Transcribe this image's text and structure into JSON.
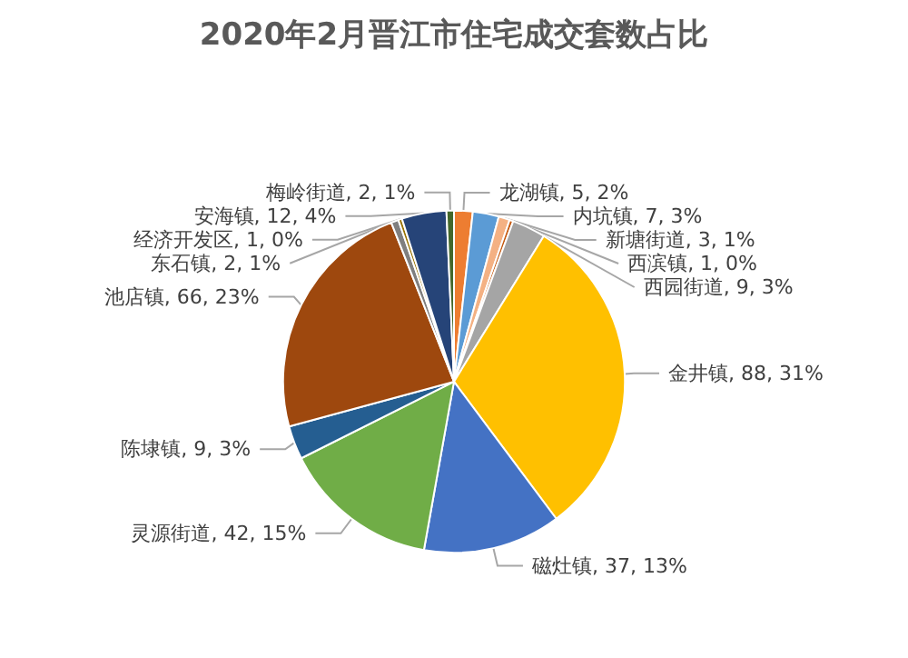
{
  "chart_data": {
    "type": "pie",
    "title": "2020年2月晋江市住宅成交套数占比",
    "categories": [
      "龙湖镇",
      "内坑镇",
      "新塘街道",
      "西滨镇",
      "西园街道",
      "金井镇",
      "磁灶镇",
      "灵源街道",
      "陈埭镇",
      "池店镇",
      "东石镇",
      "经济开发区",
      "安海镇",
      "梅岭街道"
    ],
    "values": [
      5,
      7,
      3,
      1,
      9,
      88,
      37,
      42,
      9,
      66,
      2,
      1,
      12,
      2
    ],
    "value_labels": [
      "5, 2%",
      "7, 3%",
      "3, 1%",
      "1, 0%",
      "9, 3%",
      "88, 31%",
      "37, 13%",
      "42, 15%",
      "9, 3%",
      "66, 23%",
      "2, 1%",
      "1, 0%",
      "12, 4%",
      "2, 1%"
    ],
    "colors": [
      "#ed7d31",
      "#5b9bd5",
      "#f4b183",
      "#c55a11",
      "#a5a5a5",
      "#ffc000",
      "#4472c4",
      "#70ad47",
      "#255e91",
      "#9e480e",
      "#7f7f7f",
      "#997300",
      "#264478",
      "#43682b"
    ]
  }
}
